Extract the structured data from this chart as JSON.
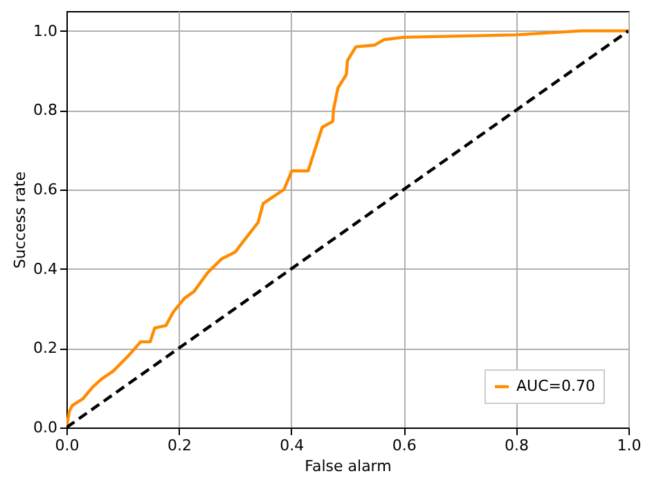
{
  "chart_data": {
    "type": "line",
    "xlabel": "False alarm",
    "ylabel": "Success rate",
    "xlim": [
      0,
      1
    ],
    "ylim": [
      0,
      1.05
    ],
    "xticks": [
      {
        "value": 0,
        "label": "0.0"
      },
      {
        "value": 0.2,
        "label": "0.2"
      },
      {
        "value": 0.4,
        "label": "0.4"
      },
      {
        "value": 0.6,
        "label": "0.6"
      },
      {
        "value": 0.8,
        "label": "0.8"
      },
      {
        "value": 1,
        "label": "1.0"
      }
    ],
    "yticks": [
      {
        "value": 0,
        "label": "0.0"
      },
      {
        "value": 0.2,
        "label": "0.2"
      },
      {
        "value": 0.4,
        "label": "0.4"
      },
      {
        "value": 0.6,
        "label": "0.6"
      },
      {
        "value": 0.8,
        "label": "0.8"
      },
      {
        "value": 1,
        "label": "1.0"
      }
    ],
    "grid": true,
    "legend": "bottom right",
    "marker": "none",
    "series": [
      {
        "name": "AUC=0.70",
        "color": "#ff8c00",
        "line_style": "solid",
        "x": [
          0,
          0.005,
          0.01,
          0.029,
          0.046,
          0.062,
          0.083,
          0.111,
          0.132,
          0.149,
          0.157,
          0.177,
          0.19,
          0.21,
          0.227,
          0.251,
          0.276,
          0.3,
          0.325,
          0.341,
          0.35,
          0.387,
          0.401,
          0.43,
          0.455,
          0.474,
          0.475,
          0.483,
          0.498,
          0.5,
          0.515,
          0.548,
          0.565,
          0.6,
          0.8,
          0.915,
          1
        ],
        "values": [
          0,
          0.04,
          0.055,
          0.072,
          0.101,
          0.122,
          0.142,
          0.182,
          0.216,
          0.216,
          0.251,
          0.257,
          0.291,
          0.326,
          0.343,
          0.39,
          0.425,
          0.442,
          0.488,
          0.517,
          0.565,
          0.6,
          0.647,
          0.647,
          0.757,
          0.772,
          0.8,
          0.856,
          0.89,
          0.925,
          0.96,
          0.964,
          0.978,
          0.984,
          0.99,
          1,
          1
        ]
      },
      {
        "color": "#000000",
        "line_style": "dashed",
        "x": [
          0,
          1
        ],
        "values": [
          0,
          1
        ]
      }
    ]
  }
}
